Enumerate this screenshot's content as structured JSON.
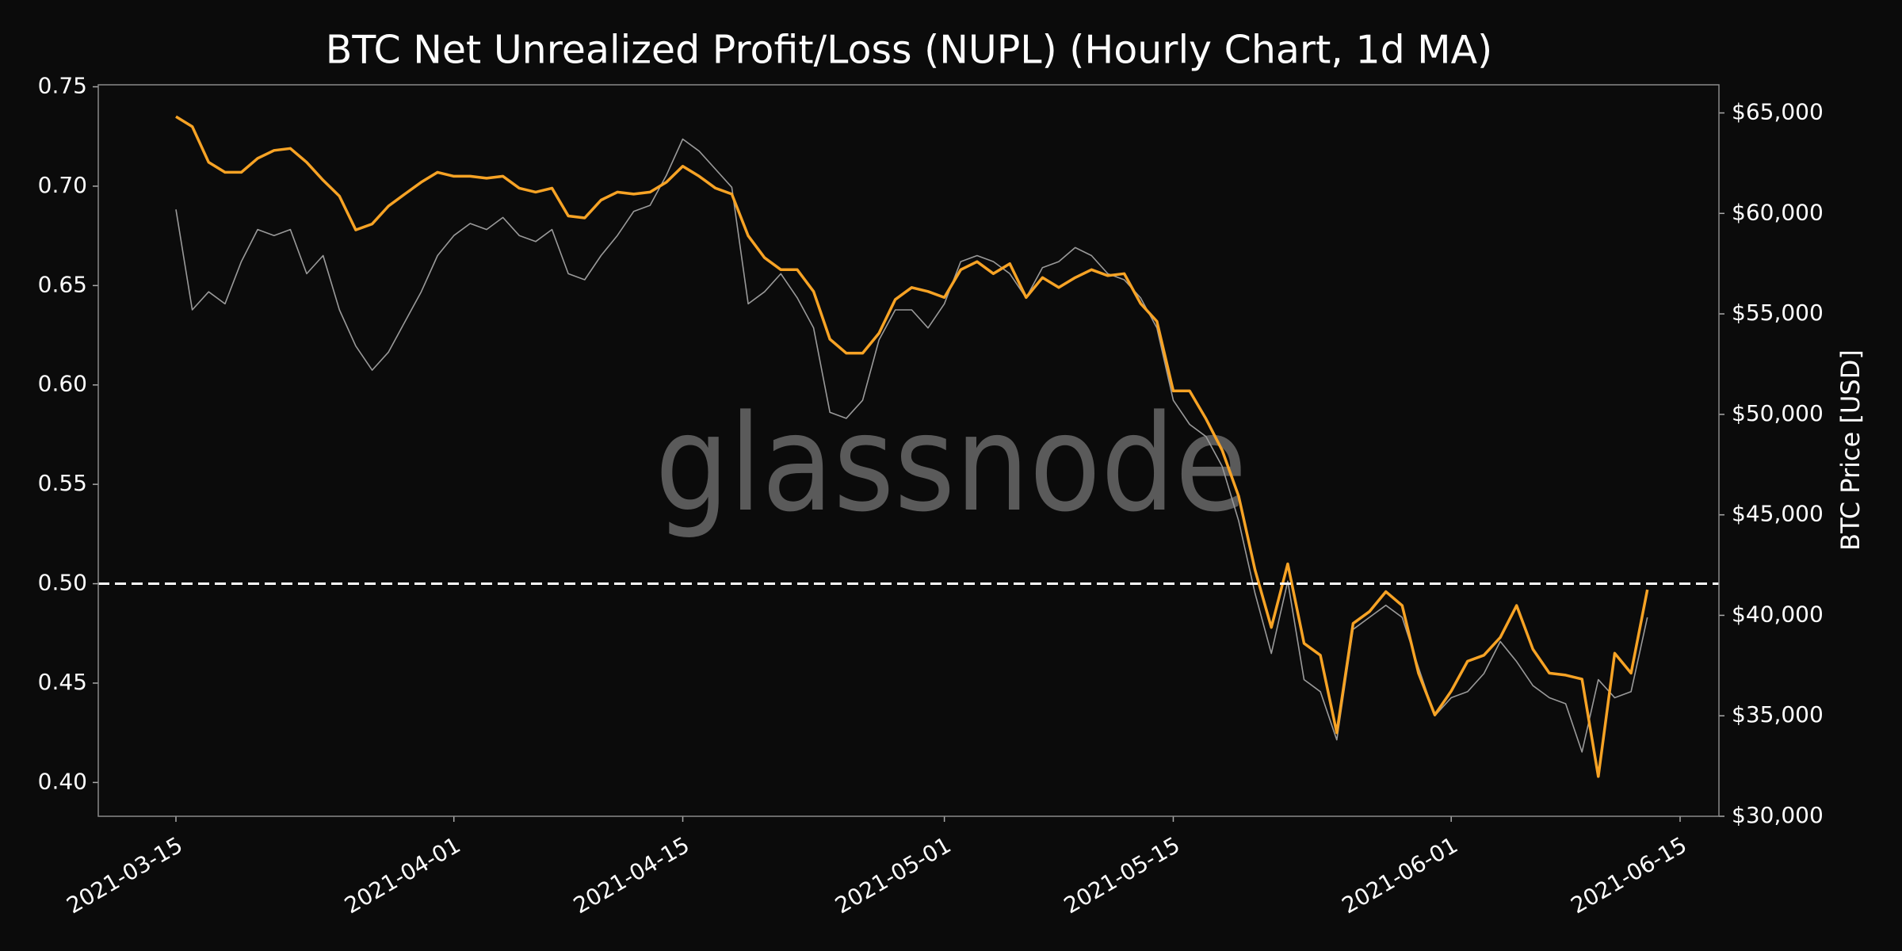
{
  "chart_data": {
    "type": "line",
    "title": "BTC Net Unrealized Profit/Loss (NUPL) (Hourly Chart, 1d MA)",
    "watermark": "glassnode",
    "y2label": "BTC Price [USD]",
    "x": [
      "2021-03-15",
      "2021-03-16",
      "2021-03-17",
      "2021-03-18",
      "2021-03-19",
      "2021-03-20",
      "2021-03-21",
      "2021-03-22",
      "2021-03-23",
      "2021-03-24",
      "2021-03-25",
      "2021-03-26",
      "2021-03-27",
      "2021-03-28",
      "2021-03-29",
      "2021-03-30",
      "2021-03-31",
      "2021-04-01",
      "2021-04-02",
      "2021-04-03",
      "2021-04-04",
      "2021-04-05",
      "2021-04-06",
      "2021-04-07",
      "2021-04-08",
      "2021-04-09",
      "2021-04-10",
      "2021-04-11",
      "2021-04-12",
      "2021-04-13",
      "2021-04-14",
      "2021-04-15",
      "2021-04-16",
      "2021-04-17",
      "2021-04-18",
      "2021-04-19",
      "2021-04-20",
      "2021-04-21",
      "2021-04-22",
      "2021-04-23",
      "2021-04-24",
      "2021-04-25",
      "2021-04-26",
      "2021-04-27",
      "2021-04-28",
      "2021-04-29",
      "2021-04-30",
      "2021-05-01",
      "2021-05-02",
      "2021-05-03",
      "2021-05-04",
      "2021-05-05",
      "2021-05-06",
      "2021-05-07",
      "2021-05-08",
      "2021-05-09",
      "2021-05-10",
      "2021-05-11",
      "2021-05-12",
      "2021-05-13",
      "2021-05-14",
      "2021-05-15",
      "2021-05-16",
      "2021-05-17",
      "2021-05-18",
      "2021-05-19",
      "2021-05-20",
      "2021-05-21",
      "2021-05-22",
      "2021-05-23",
      "2021-05-24",
      "2021-05-25",
      "2021-05-26",
      "2021-05-27",
      "2021-05-28",
      "2021-05-29",
      "2021-05-30",
      "2021-05-31",
      "2021-06-01",
      "2021-06-02",
      "2021-06-03",
      "2021-06-04",
      "2021-06-05",
      "2021-06-06",
      "2021-06-07",
      "2021-06-08",
      "2021-06-09",
      "2021-06-10",
      "2021-06-11",
      "2021-06-12",
      "2021-06-13"
    ],
    "series": [
      {
        "color": "#9a9a9a",
        "axis": "y2",
        "values": [
          60200,
          55200,
          56100,
          55500,
          57600,
          59200,
          58900,
          59200,
          57000,
          57900,
          55200,
          53400,
          52200,
          53100,
          54600,
          56100,
          57900,
          58900,
          59500,
          59200,
          59800,
          58900,
          58600,
          59200,
          57000,
          56700,
          57900,
          58900,
          60100,
          60400,
          61900,
          63700,
          63100,
          62200,
          61300,
          55500,
          56100,
          57000,
          55800,
          54300,
          50100,
          49800,
          50700,
          53700,
          55200,
          55200,
          54300,
          55500,
          57600,
          57900,
          57600,
          57000,
          55800,
          57300,
          57600,
          58300,
          57900,
          57000,
          56700,
          55800,
          54300,
          50700,
          49500,
          48900,
          47400,
          44700,
          41100,
          38100,
          41700,
          36800,
          36200,
          33800,
          39300,
          39900,
          40500,
          39900,
          37400,
          35000,
          35900,
          36200,
          37100,
          38700,
          37700,
          36500,
          35900,
          35600,
          33200,
          36800,
          35900,
          36200,
          39900
        ]
      },
      {
        "color": "#f7a325",
        "values": [
          0.735,
          0.73,
          0.712,
          0.707,
          0.707,
          0.714,
          0.718,
          0.719,
          0.712,
          0.703,
          0.695,
          0.678,
          0.681,
          0.69,
          0.696,
          0.702,
          0.707,
          0.705,
          0.705,
          0.704,
          0.705,
          0.699,
          0.697,
          0.699,
          0.685,
          0.684,
          0.693,
          0.697,
          0.696,
          0.697,
          0.702,
          0.71,
          0.705,
          0.699,
          0.696,
          0.675,
          0.664,
          0.658,
          0.658,
          0.647,
          0.623,
          0.616,
          0.616,
          0.626,
          0.643,
          0.649,
          0.647,
          0.644,
          0.658,
          0.662,
          0.656,
          0.661,
          0.644,
          0.654,
          0.649,
          0.654,
          0.658,
          0.655,
          0.656,
          0.641,
          0.632,
          0.597,
          0.597,
          0.583,
          0.567,
          0.544,
          0.507,
          0.478,
          0.51,
          0.47,
          0.464,
          0.425,
          0.48,
          0.486,
          0.496,
          0.489,
          0.455,
          0.434,
          0.446,
          0.461,
          0.464,
          0.473,
          0.489,
          0.467,
          0.455,
          0.454,
          0.452,
          0.403,
          0.465,
          0.455,
          0.497
        ]
      }
    ],
    "hline": 0.5,
    "xlim": [
      "2021-03-10T06:00:00Z",
      "2021-06-17T09:00:00Z"
    ],
    "xticks": [
      "2021-03-15",
      "2021-04-01",
      "2021-04-15",
      "2021-05-01",
      "2021-05-15",
      "2021-06-01",
      "2021-06-15"
    ],
    "ylim": [
      0.383,
      0.751
    ],
    "yticks": [
      {
        "value": 0.4,
        "label": "0.40"
      },
      0.45,
      {
        "value": 0.5,
        "label": "0.50"
      },
      0.55,
      {
        "value": 0.6,
        "label": "0.60"
      },
      0.65,
      {
        "value": 0.7,
        "label": "0.70"
      },
      0.75
    ],
    "y2lim": [
      30000,
      66400
    ],
    "y2ticks": [
      {
        "value": 30000,
        "label": "$30,000"
      },
      {
        "value": 35000,
        "label": "$35,000"
      },
      {
        "value": 40000,
        "label": "$40,000"
      },
      {
        "value": 45000,
        "label": "$45,000"
      },
      {
        "value": 50000,
        "label": "$50,000"
      },
      {
        "value": 55000,
        "label": "$55,000"
      },
      {
        "value": 60000,
        "label": "$60,000"
      },
      {
        "value": 65000,
        "label": "$65,000"
      }
    ]
  }
}
